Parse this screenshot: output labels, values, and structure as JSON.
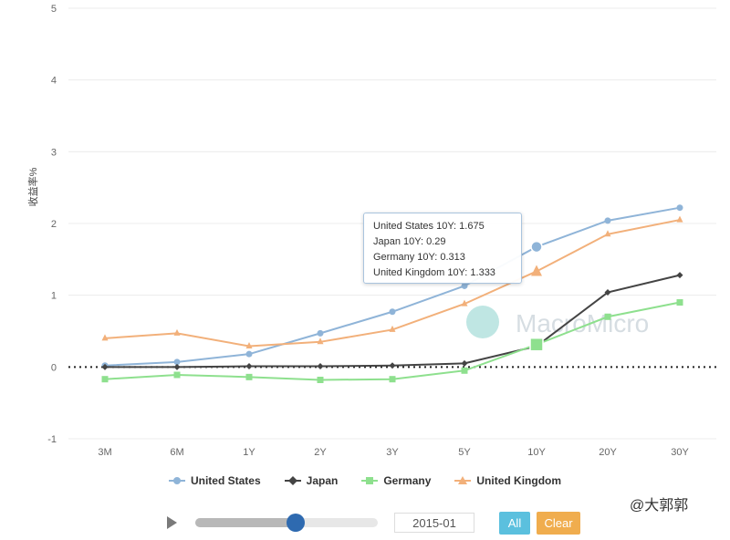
{
  "chart_data": {
    "type": "line",
    "categories": [
      "3M",
      "6M",
      "1Y",
      "2Y",
      "3Y",
      "5Y",
      "10Y",
      "20Y",
      "30Y"
    ],
    "ylabel": "收益率%",
    "ylim": [
      -1,
      5
    ],
    "yticks": [
      -1,
      0,
      1,
      2,
      3,
      4,
      5
    ],
    "grid": true,
    "legend_position": "bottom",
    "zero_line": "dotted",
    "series": [
      {
        "name": "United States",
        "color": "#8fb4d8",
        "marker": "circle",
        "values": [
          0.02,
          0.07,
          0.18,
          0.47,
          0.77,
          1.13,
          1.675,
          2.04,
          2.22
        ]
      },
      {
        "name": "Japan",
        "color": "#444444",
        "marker": "diamond",
        "values": [
          0.0,
          0.0,
          0.01,
          0.01,
          0.02,
          0.05,
          0.29,
          1.04,
          1.28
        ]
      },
      {
        "name": "Germany",
        "color": "#8ee08e",
        "marker": "square",
        "values": [
          -0.17,
          -0.11,
          -0.14,
          -0.18,
          -0.17,
          -0.05,
          0.313,
          0.7,
          0.9
        ]
      },
      {
        "name": "United Kingdom",
        "color": "#f2b07a",
        "marker": "triangle",
        "values": [
          0.4,
          0.47,
          0.29,
          0.35,
          0.52,
          0.88,
          1.333,
          1.85,
          2.05
        ]
      }
    ],
    "highlight_index": 6
  },
  "tooltip": {
    "lines": [
      "United States 10Y: 1.675",
      "Japan 10Y: 0.29",
      "Germany 10Y: 0.313",
      "United Kingdom 10Y: 1.333"
    ]
  },
  "watermark": "MacroMicro",
  "legend": {
    "items": [
      {
        "label": "United States",
        "color": "#8fb4d8"
      },
      {
        "label": "Japan",
        "color": "#444444"
      },
      {
        "label": "Germany",
        "color": "#8ee08e"
      },
      {
        "label": "United Kingdom",
        "color": "#f2b07a"
      }
    ]
  },
  "controls": {
    "date": "2015-01",
    "all_label": "All",
    "clear_label": "Clear",
    "slider_progress": 0.55
  },
  "weibo": "@大郭郭"
}
